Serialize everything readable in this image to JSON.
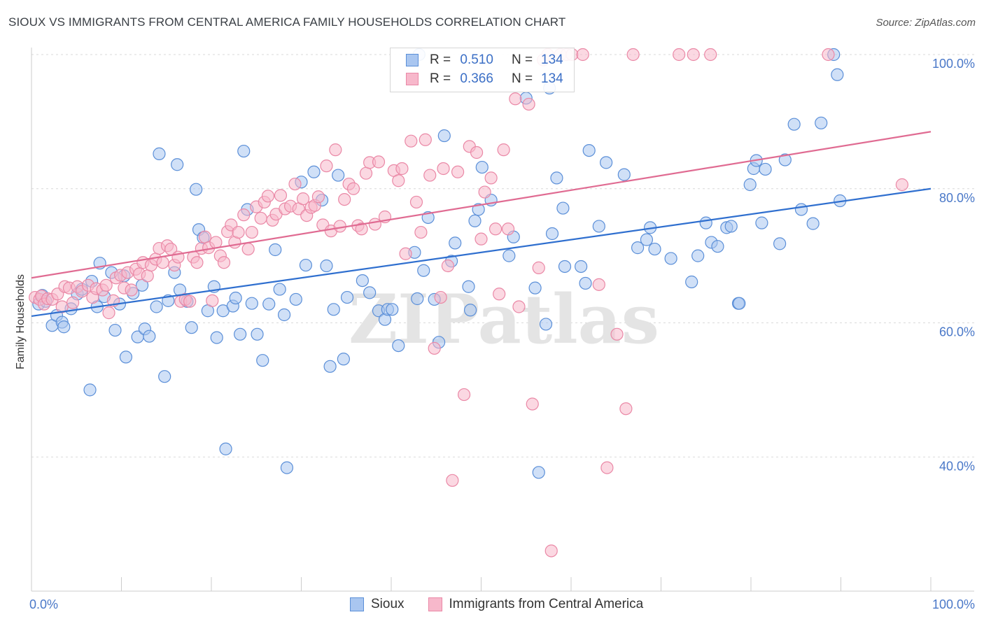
{
  "title": "SIOUX VS IMMIGRANTS FROM CENTRAL AMERICA FAMILY HOUSEHOLDS CORRELATION CHART",
  "source": "Source: ZipAtlas.com",
  "watermark": "ZIPatlas",
  "legend": {
    "rows": [
      {
        "r_label": "R =",
        "r_value": "0.510",
        "n_label": "N =",
        "n_value": "134"
      },
      {
        "r_label": "R =",
        "r_value": "0.366",
        "n_label": "N =",
        "n_value": "134"
      }
    ]
  },
  "bottom_legend": [
    "Sioux",
    "Immigrants from Central America"
  ],
  "colors": {
    "sioux_fill": "#a9c6f0",
    "sioux_stroke": "#5b8fd8",
    "sioux_line": "#2f6fcf",
    "ca_fill": "#f7b8cb",
    "ca_stroke": "#ea88a6",
    "ca_line": "#e06b92",
    "grid": "#d9d9d9",
    "tick_label": "#4a78c8"
  },
  "chart_data": {
    "type": "scatter",
    "ylabel": "Family Households",
    "xlabel": "",
    "xlim": [
      0,
      100
    ],
    "ylim": [
      20,
      100
    ],
    "x_tick_labels": {
      "min": "0.0%",
      "max": "100.0%"
    },
    "y_ticks": [
      {
        "value": 40,
        "label": "40.0%"
      },
      {
        "value": 60,
        "label": "60.0%"
      },
      {
        "value": 80,
        "label": "80.0%"
      },
      {
        "value": 100,
        "label": "100.0%"
      }
    ],
    "grid": true,
    "series": [
      {
        "name": "Sioux",
        "trend": {
          "x0": 0,
          "y0": 61.0,
          "x1": 100,
          "y1": 80.0
        },
        "points": [
          [
            0.8,
            62.8
          ],
          [
            1.2,
            64.1
          ],
          [
            1.6,
            63.2
          ],
          [
            2.3,
            59.6
          ],
          [
            2.8,
            61.1
          ],
          [
            3.4,
            60.1
          ],
          [
            3.6,
            59.4
          ],
          [
            4.4,
            62.1
          ],
          [
            5.1,
            64.3
          ],
          [
            5.6,
            65.0
          ],
          [
            6.5,
            50.0
          ],
          [
            6.7,
            66.2
          ],
          [
            7.3,
            62.4
          ],
          [
            7.6,
            68.9
          ],
          [
            8.1,
            63.9
          ],
          [
            8.9,
            67.5
          ],
          [
            9.3,
            58.9
          ],
          [
            9.8,
            62.8
          ],
          [
            10.3,
            67.0
          ],
          [
            10.5,
            54.9
          ],
          [
            11.3,
            64.4
          ],
          [
            11.8,
            57.9
          ],
          [
            12.3,
            65.6
          ],
          [
            12.6,
            59.1
          ],
          [
            13.1,
            58.0
          ],
          [
            13.9,
            62.4
          ],
          [
            14.2,
            85.2
          ],
          [
            14.8,
            52.0
          ],
          [
            15.2,
            63.3
          ],
          [
            15.9,
            67.5
          ],
          [
            16.2,
            83.6
          ],
          [
            16.5,
            64.9
          ],
          [
            17.3,
            63.2
          ],
          [
            17.8,
            59.3
          ],
          [
            18.3,
            79.9
          ],
          [
            18.6,
            73.9
          ],
          [
            19.1,
            72.7
          ],
          [
            19.6,
            61.8
          ],
          [
            20.3,
            65.4
          ],
          [
            20.6,
            57.8
          ],
          [
            21.3,
            61.8
          ],
          [
            21.6,
            41.2
          ],
          [
            22.4,
            62.5
          ],
          [
            22.7,
            63.7
          ],
          [
            23.2,
            58.3
          ],
          [
            23.6,
            85.6
          ],
          [
            24.0,
            76.9
          ],
          [
            24.5,
            62.9
          ],
          [
            25.1,
            58.3
          ],
          [
            25.7,
            54.4
          ],
          [
            26.4,
            62.8
          ],
          [
            27.1,
            70.9
          ],
          [
            27.6,
            65.0
          ],
          [
            28.1,
            61.2
          ],
          [
            28.4,
            38.4
          ],
          [
            29.4,
            63.5
          ],
          [
            30.0,
            81.0
          ],
          [
            30.5,
            68.6
          ],
          [
            31.4,
            82.5
          ],
          [
            32.3,
            78.3
          ],
          [
            32.8,
            68.5
          ],
          [
            33.2,
            53.5
          ],
          [
            33.6,
            62.0
          ],
          [
            34.7,
            54.6
          ],
          [
            35.1,
            63.8
          ],
          [
            37.6,
            64.5
          ],
          [
            38.6,
            61.8
          ],
          [
            39.3,
            60.5
          ],
          [
            39.6,
            62.0
          ],
          [
            40.1,
            62.0
          ],
          [
            40.8,
            56.6
          ],
          [
            42.6,
            70.5
          ],
          [
            42.9,
            63.6
          ],
          [
            43.6,
            67.8
          ],
          [
            44.1,
            75.7
          ],
          [
            44.8,
            63.5
          ],
          [
            45.3,
            57.1
          ],
          [
            45.9,
            87.9
          ],
          [
            46.7,
            69.2
          ],
          [
            47.1,
            71.9
          ],
          [
            48.6,
            65.4
          ],
          [
            48.8,
            61.9
          ],
          [
            49.3,
            75.2
          ],
          [
            49.7,
            76.9
          ],
          [
            50.1,
            83.2
          ],
          [
            51.1,
            78.3
          ],
          [
            53.1,
            70.0
          ],
          [
            53.6,
            72.8
          ],
          [
            55.0,
            93.5
          ],
          [
            56.0,
            65.2
          ],
          [
            56.4,
            37.7
          ],
          [
            57.2,
            59.8
          ],
          [
            57.6,
            95.0
          ],
          [
            57.9,
            73.3
          ],
          [
            58.4,
            81.6
          ],
          [
            59.1,
            77.1
          ],
          [
            59.3,
            68.4
          ],
          [
            61.1,
            68.4
          ],
          [
            61.6,
            65.9
          ],
          [
            62.0,
            85.7
          ],
          [
            63.1,
            74.4
          ],
          [
            63.9,
            83.9
          ],
          [
            65.9,
            82.1
          ],
          [
            67.4,
            71.2
          ],
          [
            68.4,
            72.4
          ],
          [
            68.8,
            74.2
          ],
          [
            69.3,
            71.0
          ],
          [
            71.1,
            69.6
          ],
          [
            73.4,
            66.1
          ],
          [
            74.1,
            70.0
          ],
          [
            75.0,
            74.9
          ],
          [
            75.6,
            72.0
          ],
          [
            76.3,
            71.4
          ],
          [
            77.3,
            74.2
          ],
          [
            77.8,
            74.4
          ],
          [
            78.6,
            62.9
          ],
          [
            78.7,
            62.9
          ],
          [
            79.9,
            80.6
          ],
          [
            80.3,
            83.0
          ],
          [
            80.6,
            84.2
          ],
          [
            81.2,
            74.9
          ],
          [
            81.6,
            82.9
          ],
          [
            83.2,
            71.8
          ],
          [
            83.8,
            84.3
          ],
          [
            84.8,
            89.6
          ],
          [
            85.6,
            76.9
          ],
          [
            86.9,
            74.8
          ],
          [
            87.8,
            89.8
          ],
          [
            89.2,
            100.0
          ],
          [
            89.6,
            97.0
          ],
          [
            89.9,
            78.2
          ],
          [
            43.1,
            100.0
          ],
          [
            36.8,
            66.3
          ],
          [
            34.1,
            82.0
          ]
        ]
      },
      {
        "name": "Immigrants from Central America",
        "trend": {
          "x0": 0,
          "y0": 66.7,
          "x1": 100,
          "y1": 88.5
        },
        "points": [
          [
            0.4,
            63.8
          ],
          [
            0.9,
            63.5
          ],
          [
            1.1,
            64.0
          ],
          [
            1.4,
            62.8
          ],
          [
            1.8,
            63.6
          ],
          [
            2.3,
            63.5
          ],
          [
            2.9,
            64.3
          ],
          [
            3.4,
            62.4
          ],
          [
            3.7,
            65.4
          ],
          [
            4.2,
            65.2
          ],
          [
            4.6,
            63.0
          ],
          [
            5.1,
            65.4
          ],
          [
            5.6,
            64.7
          ],
          [
            6.3,
            65.6
          ],
          [
            6.8,
            63.8
          ],
          [
            7.2,
            65.1
          ],
          [
            7.9,
            64.9
          ],
          [
            8.3,
            65.6
          ],
          [
            8.6,
            61.5
          ],
          [
            9.1,
            63.3
          ],
          [
            9.4,
            66.7
          ],
          [
            9.9,
            67.1
          ],
          [
            10.3,
            65.2
          ],
          [
            10.7,
            67.5
          ],
          [
            11.1,
            64.9
          ],
          [
            11.6,
            68.0
          ],
          [
            12.0,
            67.3
          ],
          [
            12.4,
            69.0
          ],
          [
            12.9,
            67.0
          ],
          [
            13.3,
            68.6
          ],
          [
            13.8,
            69.5
          ],
          [
            14.2,
            71.1
          ],
          [
            14.6,
            69.0
          ],
          [
            15.1,
            71.5
          ],
          [
            15.5,
            71.0
          ],
          [
            15.9,
            68.6
          ],
          [
            16.3,
            69.8
          ],
          [
            16.6,
            63.2
          ],
          [
            17.1,
            63.5
          ],
          [
            17.6,
            63.2
          ],
          [
            18.0,
            69.8
          ],
          [
            18.4,
            69.0
          ],
          [
            18.9,
            71.1
          ],
          [
            19.3,
            72.8
          ],
          [
            19.7,
            71.2
          ],
          [
            20.1,
            63.3
          ],
          [
            20.5,
            72.0
          ],
          [
            21.0,
            70.0
          ],
          [
            21.4,
            69.0
          ],
          [
            21.8,
            73.6
          ],
          [
            22.2,
            74.6
          ],
          [
            22.6,
            72.0
          ],
          [
            23.0,
            73.5
          ],
          [
            23.6,
            76.1
          ],
          [
            24.1,
            71.0
          ],
          [
            24.5,
            73.5
          ],
          [
            25.0,
            77.3
          ],
          [
            25.5,
            75.6
          ],
          [
            25.9,
            78.0
          ],
          [
            26.3,
            78.9
          ],
          [
            26.8,
            75.3
          ],
          [
            27.2,
            76.2
          ],
          [
            27.7,
            79.0
          ],
          [
            28.2,
            77.0
          ],
          [
            28.8,
            77.4
          ],
          [
            29.3,
            80.7
          ],
          [
            29.7,
            77.0
          ],
          [
            30.2,
            78.5
          ],
          [
            30.6,
            76.0
          ],
          [
            31.1,
            77.2
          ],
          [
            31.5,
            77.5
          ],
          [
            31.9,
            78.8
          ],
          [
            32.4,
            74.6
          ],
          [
            32.8,
            83.4
          ],
          [
            33.3,
            73.7
          ],
          [
            33.8,
            85.8
          ],
          [
            34.3,
            74.4
          ],
          [
            34.8,
            78.4
          ],
          [
            35.3,
            80.7
          ],
          [
            35.8,
            80.0
          ],
          [
            36.3,
            74.5
          ],
          [
            36.7,
            74.0
          ],
          [
            37.2,
            82.3
          ],
          [
            37.6,
            83.9
          ],
          [
            38.2,
            74.7
          ],
          [
            38.6,
            84.0
          ],
          [
            39.3,
            75.8
          ],
          [
            40.3,
            82.7
          ],
          [
            40.8,
            81.2
          ],
          [
            41.2,
            83.0
          ],
          [
            41.6,
            70.3
          ],
          [
            42.2,
            87.1
          ],
          [
            42.8,
            78.0
          ],
          [
            43.3,
            73.5
          ],
          [
            43.8,
            87.3
          ],
          [
            44.3,
            82.0
          ],
          [
            44.8,
            56.2
          ],
          [
            45.5,
            63.8
          ],
          [
            45.8,
            83.0
          ],
          [
            46.3,
            68.5
          ],
          [
            46.8,
            36.5
          ],
          [
            47.4,
            82.5
          ],
          [
            48.1,
            49.3
          ],
          [
            48.7,
            86.3
          ],
          [
            49.5,
            85.4
          ],
          [
            50.0,
            72.5
          ],
          [
            50.4,
            79.5
          ],
          [
            51.1,
            81.6
          ],
          [
            51.6,
            74.0
          ],
          [
            52.0,
            64.3
          ],
          [
            52.5,
            85.8
          ],
          [
            53.0,
            74.0
          ],
          [
            53.8,
            93.4
          ],
          [
            54.2,
            62.4
          ],
          [
            55.3,
            92.6
          ],
          [
            55.7,
            47.9
          ],
          [
            56.4,
            68.2
          ],
          [
            56.9,
            99.2
          ],
          [
            57.4,
            100.0
          ],
          [
            57.8,
            26.0
          ],
          [
            58.8,
            100.0
          ],
          [
            59.5,
            100.0
          ],
          [
            60.1,
            100.0
          ],
          [
            61.3,
            100.0
          ],
          [
            63.1,
            65.7
          ],
          [
            64.0,
            38.4
          ],
          [
            65.1,
            58.3
          ],
          [
            66.1,
            47.2
          ],
          [
            66.9,
            100.0
          ],
          [
            72.0,
            100.0
          ],
          [
            73.6,
            100.0
          ],
          [
            75.5,
            100.0
          ],
          [
            88.6,
            100.0
          ],
          [
            96.8,
            80.6
          ]
        ]
      }
    ]
  }
}
